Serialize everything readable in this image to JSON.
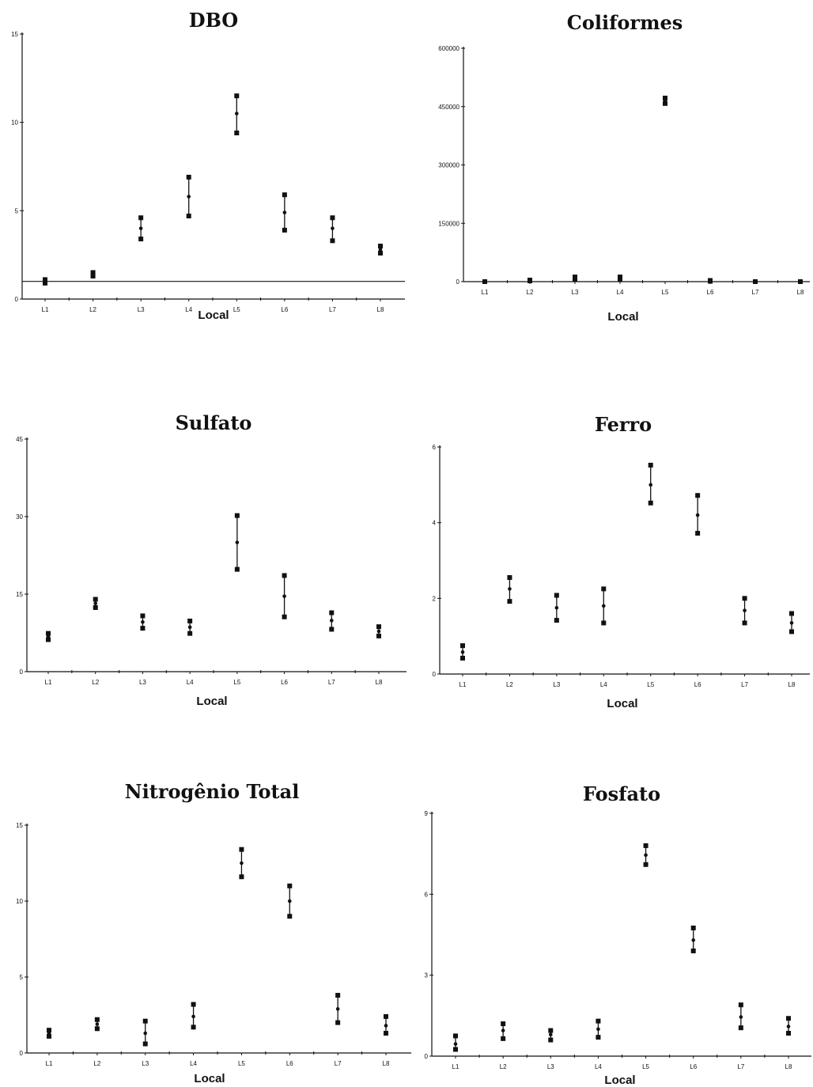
{
  "chart_data": [
    {
      "type": "scatter",
      "title": "DBO",
      "xlabel": "Local",
      "ylabel": "",
      "categories": [
        "L1",
        "L2",
        "L3",
        "L4",
        "L5",
        "L6",
        "L7",
        "L8"
      ],
      "yticks": [
        "0",
        "5",
        "10",
        "15"
      ],
      "ylim": [
        0,
        15
      ],
      "reference_line": 1,
      "series": [
        {
          "mean": [
            1.0,
            1.4,
            4.0,
            5.8,
            10.5,
            4.9,
            4.0,
            2.8
          ],
          "low": [
            0.9,
            1.3,
            3.4,
            4.7,
            9.4,
            3.9,
            3.3,
            2.6
          ],
          "high": [
            1.1,
            1.5,
            4.6,
            6.9,
            11.5,
            5.9,
            4.6,
            3.0
          ]
        }
      ]
    },
    {
      "type": "scatter",
      "title": "Coliformes",
      "xlabel": "Local",
      "ylabel": "",
      "categories": [
        "L1",
        "L2",
        "L3",
        "L4",
        "L5",
        "L6",
        "L7",
        "L8"
      ],
      "yticks": [
        "0",
        "150000",
        "300000",
        "450000",
        "600000"
      ],
      "ylim": [
        0,
        600000
      ],
      "series": [
        {
          "mean": [
            0,
            3000,
            9000,
            9000,
            465000,
            2000,
            0,
            0
          ],
          "low": [
            0,
            2000,
            6000,
            6000,
            458000,
            1000,
            0,
            0
          ],
          "high": [
            0,
            4000,
            12000,
            12000,
            472000,
            3000,
            0,
            0
          ]
        }
      ]
    },
    {
      "type": "scatter",
      "title": "Sulfato",
      "xlabel": "Local",
      "ylabel": "",
      "categories": [
        "L1",
        "L2",
        "L3",
        "L4",
        "L5",
        "L6",
        "L7",
        "L8"
      ],
      "yticks": [
        "0",
        "15",
        "30",
        "45"
      ],
      "ylim": [
        0,
        45
      ],
      "series": [
        {
          "mean": [
            6.8,
            13.2,
            9.6,
            8.6,
            25.0,
            14.6,
            9.9,
            7.8
          ],
          "low": [
            6.2,
            12.4,
            8.4,
            7.4,
            19.8,
            10.6,
            8.2,
            6.9
          ],
          "high": [
            7.4,
            14.0,
            10.8,
            9.8,
            30.2,
            18.6,
            11.4,
            8.7
          ]
        }
      ]
    },
    {
      "type": "scatter",
      "title": "Ferro",
      "xlabel": "Local",
      "ylabel": "",
      "categories": [
        "L1",
        "L2",
        "L3",
        "L4",
        "L5",
        "L6",
        "L7",
        "L8"
      ],
      "yticks": [
        "0",
        "2",
        "4",
        "6"
      ],
      "ylim": [
        0,
        6
      ],
      "series": [
        {
          "mean": [
            0.58,
            2.25,
            1.75,
            1.8,
            5.0,
            4.2,
            1.68,
            1.35
          ],
          "low": [
            0.42,
            1.92,
            1.42,
            1.35,
            4.52,
            3.72,
            1.35,
            1.12
          ],
          "high": [
            0.75,
            2.55,
            2.08,
            2.25,
            5.52,
            4.72,
            2.0,
            1.6
          ]
        }
      ]
    },
    {
      "type": "scatter",
      "title": "Nitrogênio Total",
      "xlabel": "Local",
      "ylabel": "",
      "categories": [
        "L1",
        "L2",
        "L3",
        "L4",
        "L5",
        "L6",
        "L7",
        "L8"
      ],
      "yticks": [
        "0",
        "5",
        "10",
        "15"
      ],
      "ylim": [
        0,
        15
      ],
      "series": [
        {
          "mean": [
            1.3,
            1.9,
            1.3,
            2.4,
            12.5,
            10.0,
            2.9,
            1.8
          ],
          "low": [
            1.1,
            1.6,
            0.6,
            1.7,
            11.6,
            9.0,
            2.0,
            1.3
          ],
          "high": [
            1.5,
            2.2,
            2.1,
            3.2,
            13.4,
            11.0,
            3.8,
            2.4
          ]
        }
      ]
    },
    {
      "type": "scatter",
      "title": "Fosfato",
      "xlabel": "Local",
      "ylabel": "",
      "categories": [
        "L1",
        "L2",
        "L3",
        "L4",
        "L5",
        "L6",
        "L7",
        "L8"
      ],
      "yticks": [
        "0",
        "3",
        "6",
        "9"
      ],
      "ylim": [
        0,
        9
      ],
      "series": [
        {
          "mean": [
            0.45,
            0.95,
            0.8,
            1.0,
            7.45,
            4.3,
            1.45,
            1.1
          ],
          "low": [
            0.25,
            0.65,
            0.6,
            0.7,
            7.1,
            3.9,
            1.05,
            0.85
          ],
          "high": [
            0.75,
            1.2,
            0.95,
            1.3,
            7.8,
            4.75,
            1.9,
            1.4
          ]
        }
      ]
    }
  ]
}
